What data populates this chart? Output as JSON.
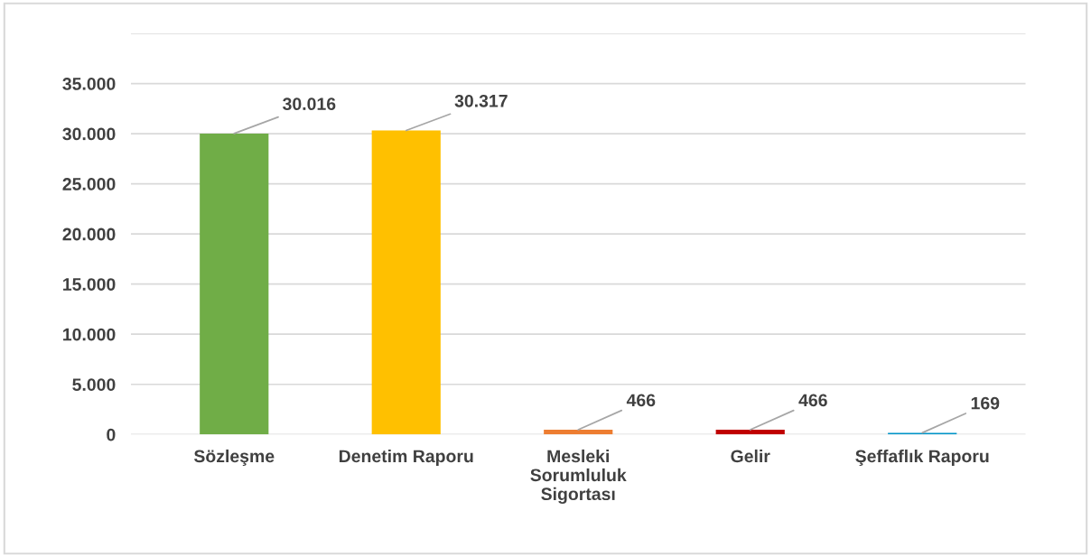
{
  "chart_data": {
    "type": "bar",
    "categories": [
      "Sözleşme",
      "Denetim Raporu",
      "Mesleki Sorumluluk Sigortası",
      "Gelir",
      "Şeffaflık Raporu"
    ],
    "values": [
      30016,
      30317,
      466,
      466,
      169
    ],
    "colors": [
      "#70ad47",
      "#ffc000",
      "#ed7d31",
      "#c00000",
      "#0094c8"
    ],
    "value_labels": [
      "30.016",
      "30.317",
      "466",
      "466",
      "169"
    ],
    "ylim": [
      0,
      40000
    ],
    "yticks": [
      {
        "value": 0,
        "label": "0"
      },
      {
        "value": 5000,
        "label": "5.000"
      },
      {
        "value": 10000,
        "label": "10.000"
      },
      {
        "value": 15000,
        "label": "15.000"
      },
      {
        "value": 20000,
        "label": "20.000"
      },
      {
        "value": 25000,
        "label": "25.000"
      },
      {
        "value": 30000,
        "label": "30.000"
      },
      {
        "value": 35000,
        "label": "35.000"
      },
      {
        "value": 40000,
        "label": null
      }
    ],
    "grid": "y"
  }
}
